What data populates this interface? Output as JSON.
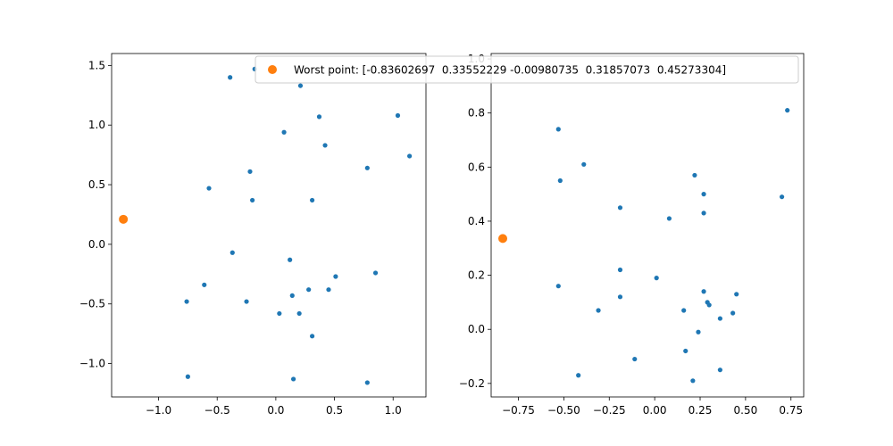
{
  "chart_data": [
    {
      "type": "scatter",
      "xlim": [
        -1.4,
        1.28
      ],
      "ylim": [
        -1.28,
        1.6
      ],
      "x_ticks": [
        -1.0,
        -0.5,
        0.0,
        0.5,
        1.0
      ],
      "x_tick_labels": [
        "−1.0",
        "−0.5",
        "0.0",
        "0.5",
        "1.0"
      ],
      "y_ticks": [
        -1.0,
        -0.5,
        0.0,
        0.5,
        1.0,
        1.5
      ],
      "y_tick_labels": [
        "−1.0",
        "−0.5",
        "0.0",
        "0.5",
        "1.0",
        "1.5"
      ],
      "grid": false,
      "series": [
        {
          "color": "#1f77b4",
          "marker_size": "small",
          "points": [
            [
              -0.39,
              1.4
            ],
            [
              -0.18,
              1.47
            ],
            [
              0.21,
              1.33
            ],
            [
              0.37,
              1.07
            ],
            [
              1.04,
              1.08
            ],
            [
              0.07,
              0.94
            ],
            [
              0.42,
              0.83
            ],
            [
              1.14,
              0.74
            ],
            [
              0.78,
              0.64
            ],
            [
              -0.22,
              0.61
            ],
            [
              -0.57,
              0.47
            ],
            [
              -0.2,
              0.37
            ],
            [
              0.31,
              0.37
            ],
            [
              -0.37,
              -0.07
            ],
            [
              0.12,
              -0.13
            ],
            [
              0.85,
              -0.24
            ],
            [
              0.51,
              -0.27
            ],
            [
              -0.61,
              -0.34
            ],
            [
              0.28,
              -0.38
            ],
            [
              0.45,
              -0.38
            ],
            [
              0.14,
              -0.43
            ],
            [
              -0.76,
              -0.48
            ],
            [
              -0.25,
              -0.48
            ],
            [
              0.03,
              -0.58
            ],
            [
              0.2,
              -0.58
            ],
            [
              0.31,
              -0.77
            ],
            [
              -0.75,
              -1.11
            ],
            [
              0.15,
              -1.13
            ],
            [
              0.78,
              -1.16
            ]
          ]
        },
        {
          "name": "Worst point: [-0.83602697  0.33552229 -0.00980735  0.31857073  0.45273304]",
          "color": "#ff7f0e",
          "marker_size": "large",
          "points": [
            [
              -1.3,
              0.21
            ]
          ]
        }
      ]
    },
    {
      "type": "scatter",
      "xlim": [
        -0.9,
        0.82
      ],
      "ylim": [
        -0.25,
        1.02
      ],
      "x_ticks": [
        -0.75,
        -0.5,
        -0.25,
        0.0,
        0.25,
        0.5,
        0.75
      ],
      "x_tick_labels": [
        "−0.75",
        "−0.50",
        "−0.25",
        "0.00",
        "0.25",
        "0.50",
        "0.75"
      ],
      "y_ticks": [
        -0.2,
        0.0,
        0.2,
        0.4,
        0.6,
        0.8,
        1.0
      ],
      "y_tick_labels": [
        "−0.2",
        "0.0",
        "0.2",
        "0.4",
        "0.6",
        "0.8",
        "1.0"
      ],
      "grid": false,
      "series": [
        {
          "color": "#1f77b4",
          "marker_size": "small",
          "points": [
            [
              -0.53,
              0.74
            ],
            [
              -0.39,
              0.61
            ],
            [
              -0.52,
              0.55
            ],
            [
              0.73,
              0.81
            ],
            [
              0.7,
              0.49
            ],
            [
              0.22,
              0.57
            ],
            [
              0.27,
              0.5
            ],
            [
              -0.19,
              0.45
            ],
            [
              0.08,
              0.41
            ],
            [
              0.27,
              0.43
            ],
            [
              -0.19,
              0.22
            ],
            [
              0.01,
              0.19
            ],
            [
              -0.53,
              0.16
            ],
            [
              0.27,
              0.14
            ],
            [
              0.45,
              0.13
            ],
            [
              -0.19,
              0.12
            ],
            [
              0.29,
              0.1
            ],
            [
              0.3,
              0.09
            ],
            [
              -0.31,
              0.07
            ],
            [
              0.16,
              0.07
            ],
            [
              0.43,
              0.06
            ],
            [
              0.36,
              0.04
            ],
            [
              0.24,
              -0.01
            ],
            [
              0.17,
              -0.08
            ],
            [
              -0.11,
              -0.11
            ],
            [
              0.36,
              -0.15
            ],
            [
              -0.42,
              -0.17
            ],
            [
              0.21,
              -0.19
            ]
          ]
        },
        {
          "name": "Worst point: [-0.83602697  0.33552229 -0.00980735  0.31857073  0.45273304]",
          "color": "#ff7f0e",
          "marker_size": "large",
          "points": [
            [
              -0.836,
              0.336
            ]
          ]
        }
      ]
    }
  ],
  "legend": {
    "label": "Worst point: [-0.83602697  0.33552229 -0.00980735  0.31857073  0.45273304]",
    "color": "#ff7f0e",
    "placement": "top-center"
  }
}
